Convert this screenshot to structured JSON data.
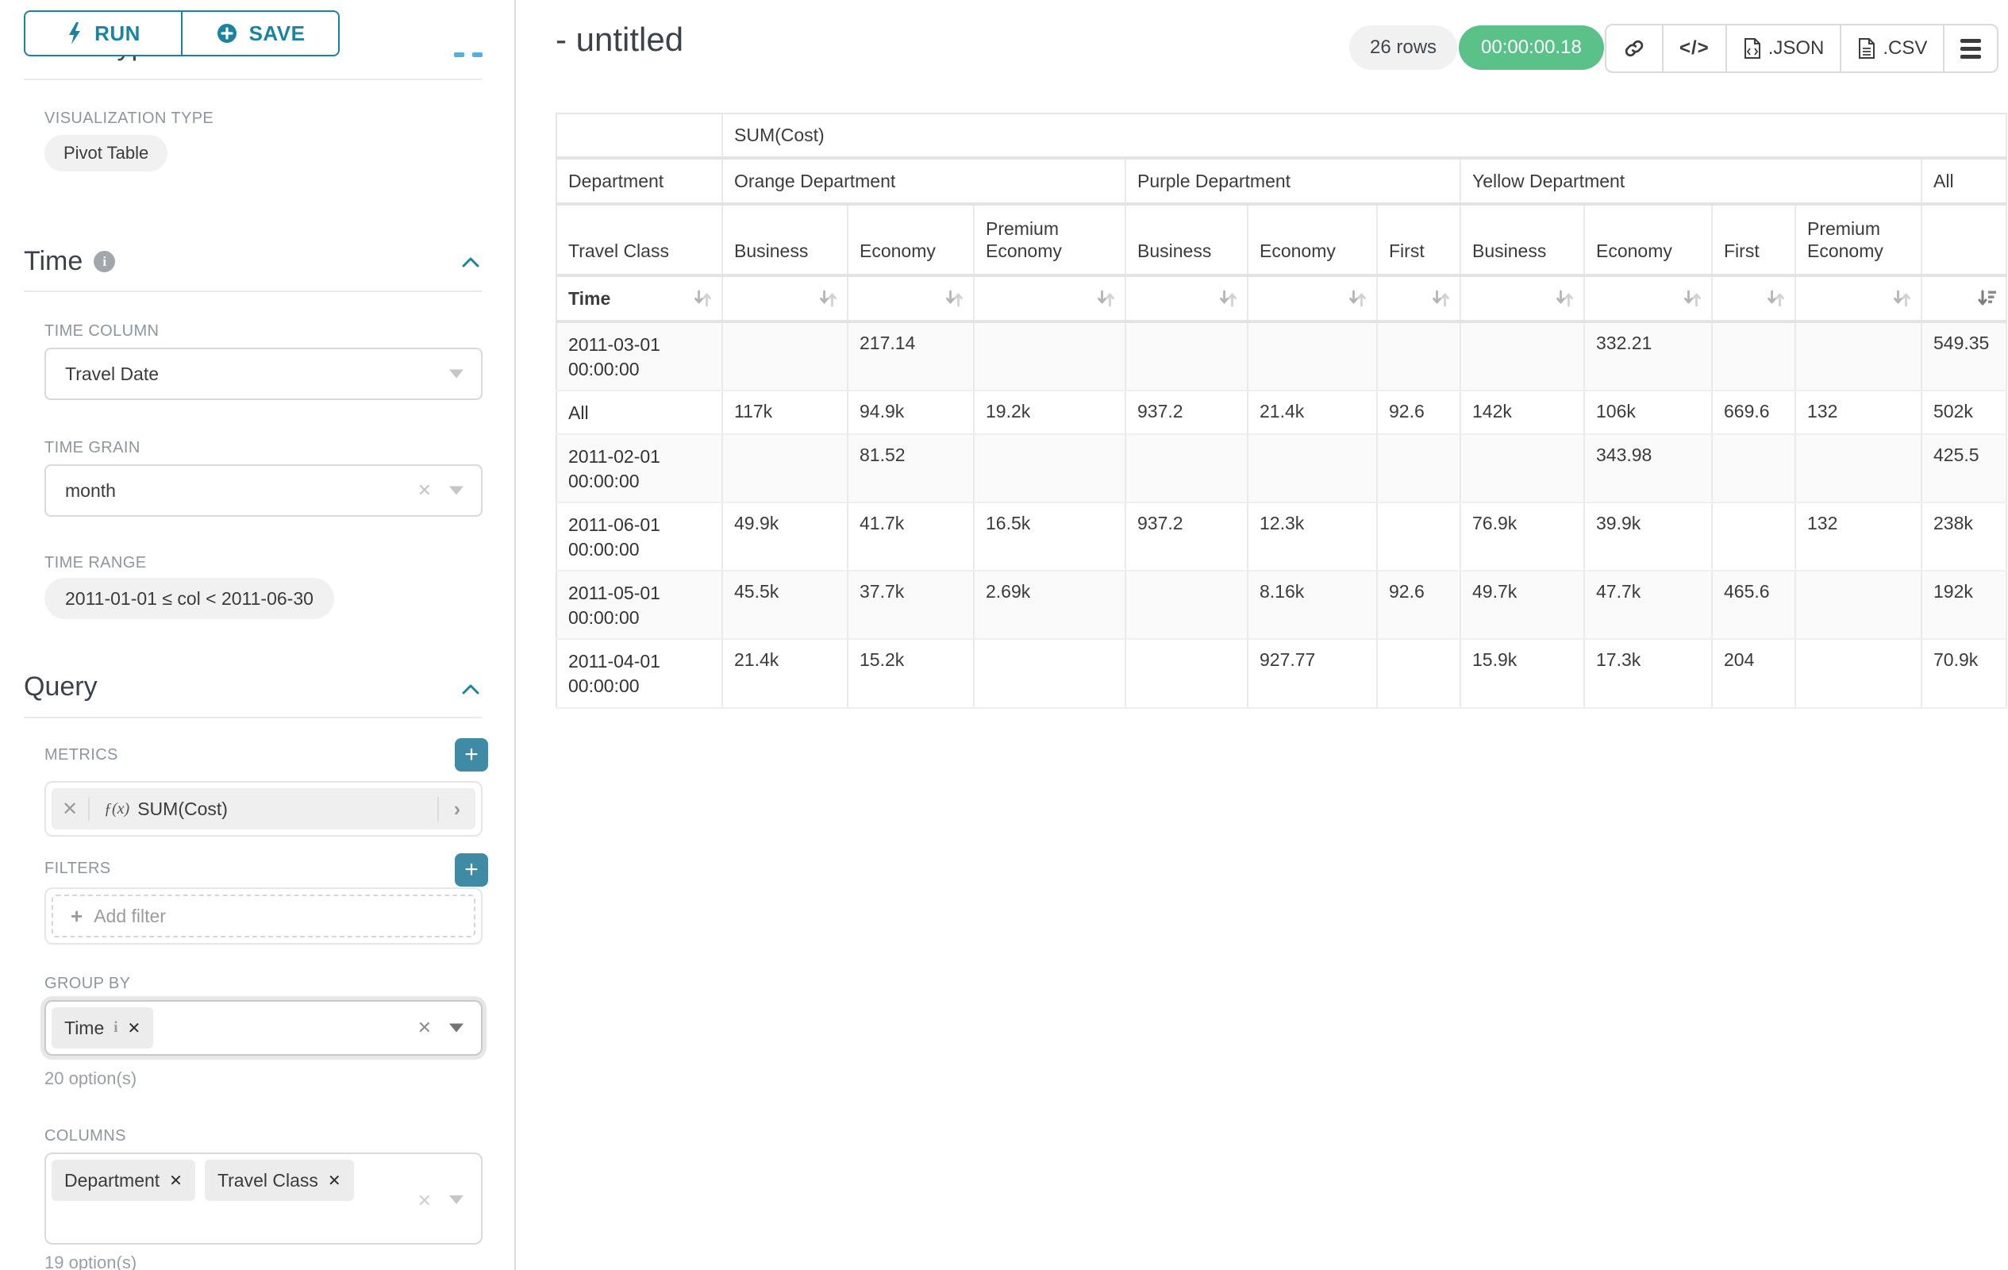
{
  "colors": {
    "accent": "#1a84a0",
    "timer_green": "#5ac189",
    "plus_button": "#3f8aa4"
  },
  "sidebar": {
    "run_label": "RUN",
    "save_label": "SAVE",
    "clipped_heading": "Chart Type",
    "visualization_type_label": "VISUALIZATION TYPE",
    "visualization_type_value": "Pivot Table",
    "time": {
      "title": "Time",
      "time_column_label": "TIME COLUMN",
      "time_column_value": "Travel Date",
      "time_grain_label": "TIME GRAIN",
      "time_grain_value": "month",
      "time_range_label": "TIME RANGE",
      "time_range_value": "2011-01-01 ≤ col < 2011-06-30"
    },
    "query": {
      "title": "Query",
      "metrics_label": "METRICS",
      "metric_fx": "ƒ(x)",
      "metric_value": "SUM(Cost)",
      "filters_label": "FILTERS",
      "add_filter_label": "Add filter",
      "group_by_label": "GROUP BY",
      "group_by_chip": "Time",
      "group_by_hint": "20 option(s)",
      "columns_label": "COLUMNS",
      "columns_chips": [
        "Department",
        "Travel Class"
      ],
      "columns_hint": "19 option(s)"
    }
  },
  "header": {
    "title": "- untitled",
    "row_count": "26 rows",
    "timer": "00:00:00.18",
    "json_label": ".JSON",
    "csv_label": ".CSV"
  },
  "pivot": {
    "metric_header": "SUM(Cost)",
    "department_label": "Department",
    "travel_class_label": "Travel Class",
    "time_label": "Time",
    "departments": [
      {
        "label": "Orange Department",
        "span": 3
      },
      {
        "label": "Purple Department",
        "span": 3
      },
      {
        "label": "Yellow Department",
        "span": 4
      },
      {
        "label": "All",
        "span": 1
      }
    ],
    "class_headers": [
      "Business",
      "Economy",
      "Premium Economy",
      "Business",
      "Economy",
      "First",
      "Business",
      "Economy",
      "First",
      "Premium Economy"
    ],
    "rows": [
      {
        "label": "2011-03-01 00:00:00",
        "cells": [
          "",
          "217.14",
          "",
          "",
          "",
          "",
          "",
          "332.21",
          "",
          "",
          "549.35"
        ]
      },
      {
        "label": "All",
        "cells": [
          "117k",
          "94.9k",
          "19.2k",
          "937.2",
          "21.4k",
          "92.6",
          "142k",
          "106k",
          "669.6",
          "132",
          "502k"
        ]
      },
      {
        "label": "2011-02-01 00:00:00",
        "cells": [
          "",
          "81.52",
          "",
          "",
          "",
          "",
          "",
          "343.98",
          "",
          "",
          "425.5"
        ]
      },
      {
        "label": "2011-06-01 00:00:00",
        "cells": [
          "49.9k",
          "41.7k",
          "16.5k",
          "937.2",
          "12.3k",
          "",
          "76.9k",
          "39.9k",
          "",
          "132",
          "238k"
        ]
      },
      {
        "label": "2011-05-01 00:00:00",
        "cells": [
          "45.5k",
          "37.7k",
          "2.69k",
          "",
          "8.16k",
          "92.6",
          "49.7k",
          "47.7k",
          "465.6",
          "",
          "192k"
        ]
      },
      {
        "label": "2011-04-01 00:00:00",
        "cells": [
          "21.4k",
          "15.2k",
          "",
          "",
          "927.77",
          "",
          "15.9k",
          "17.3k",
          "204",
          "",
          "70.9k"
        ]
      }
    ]
  }
}
